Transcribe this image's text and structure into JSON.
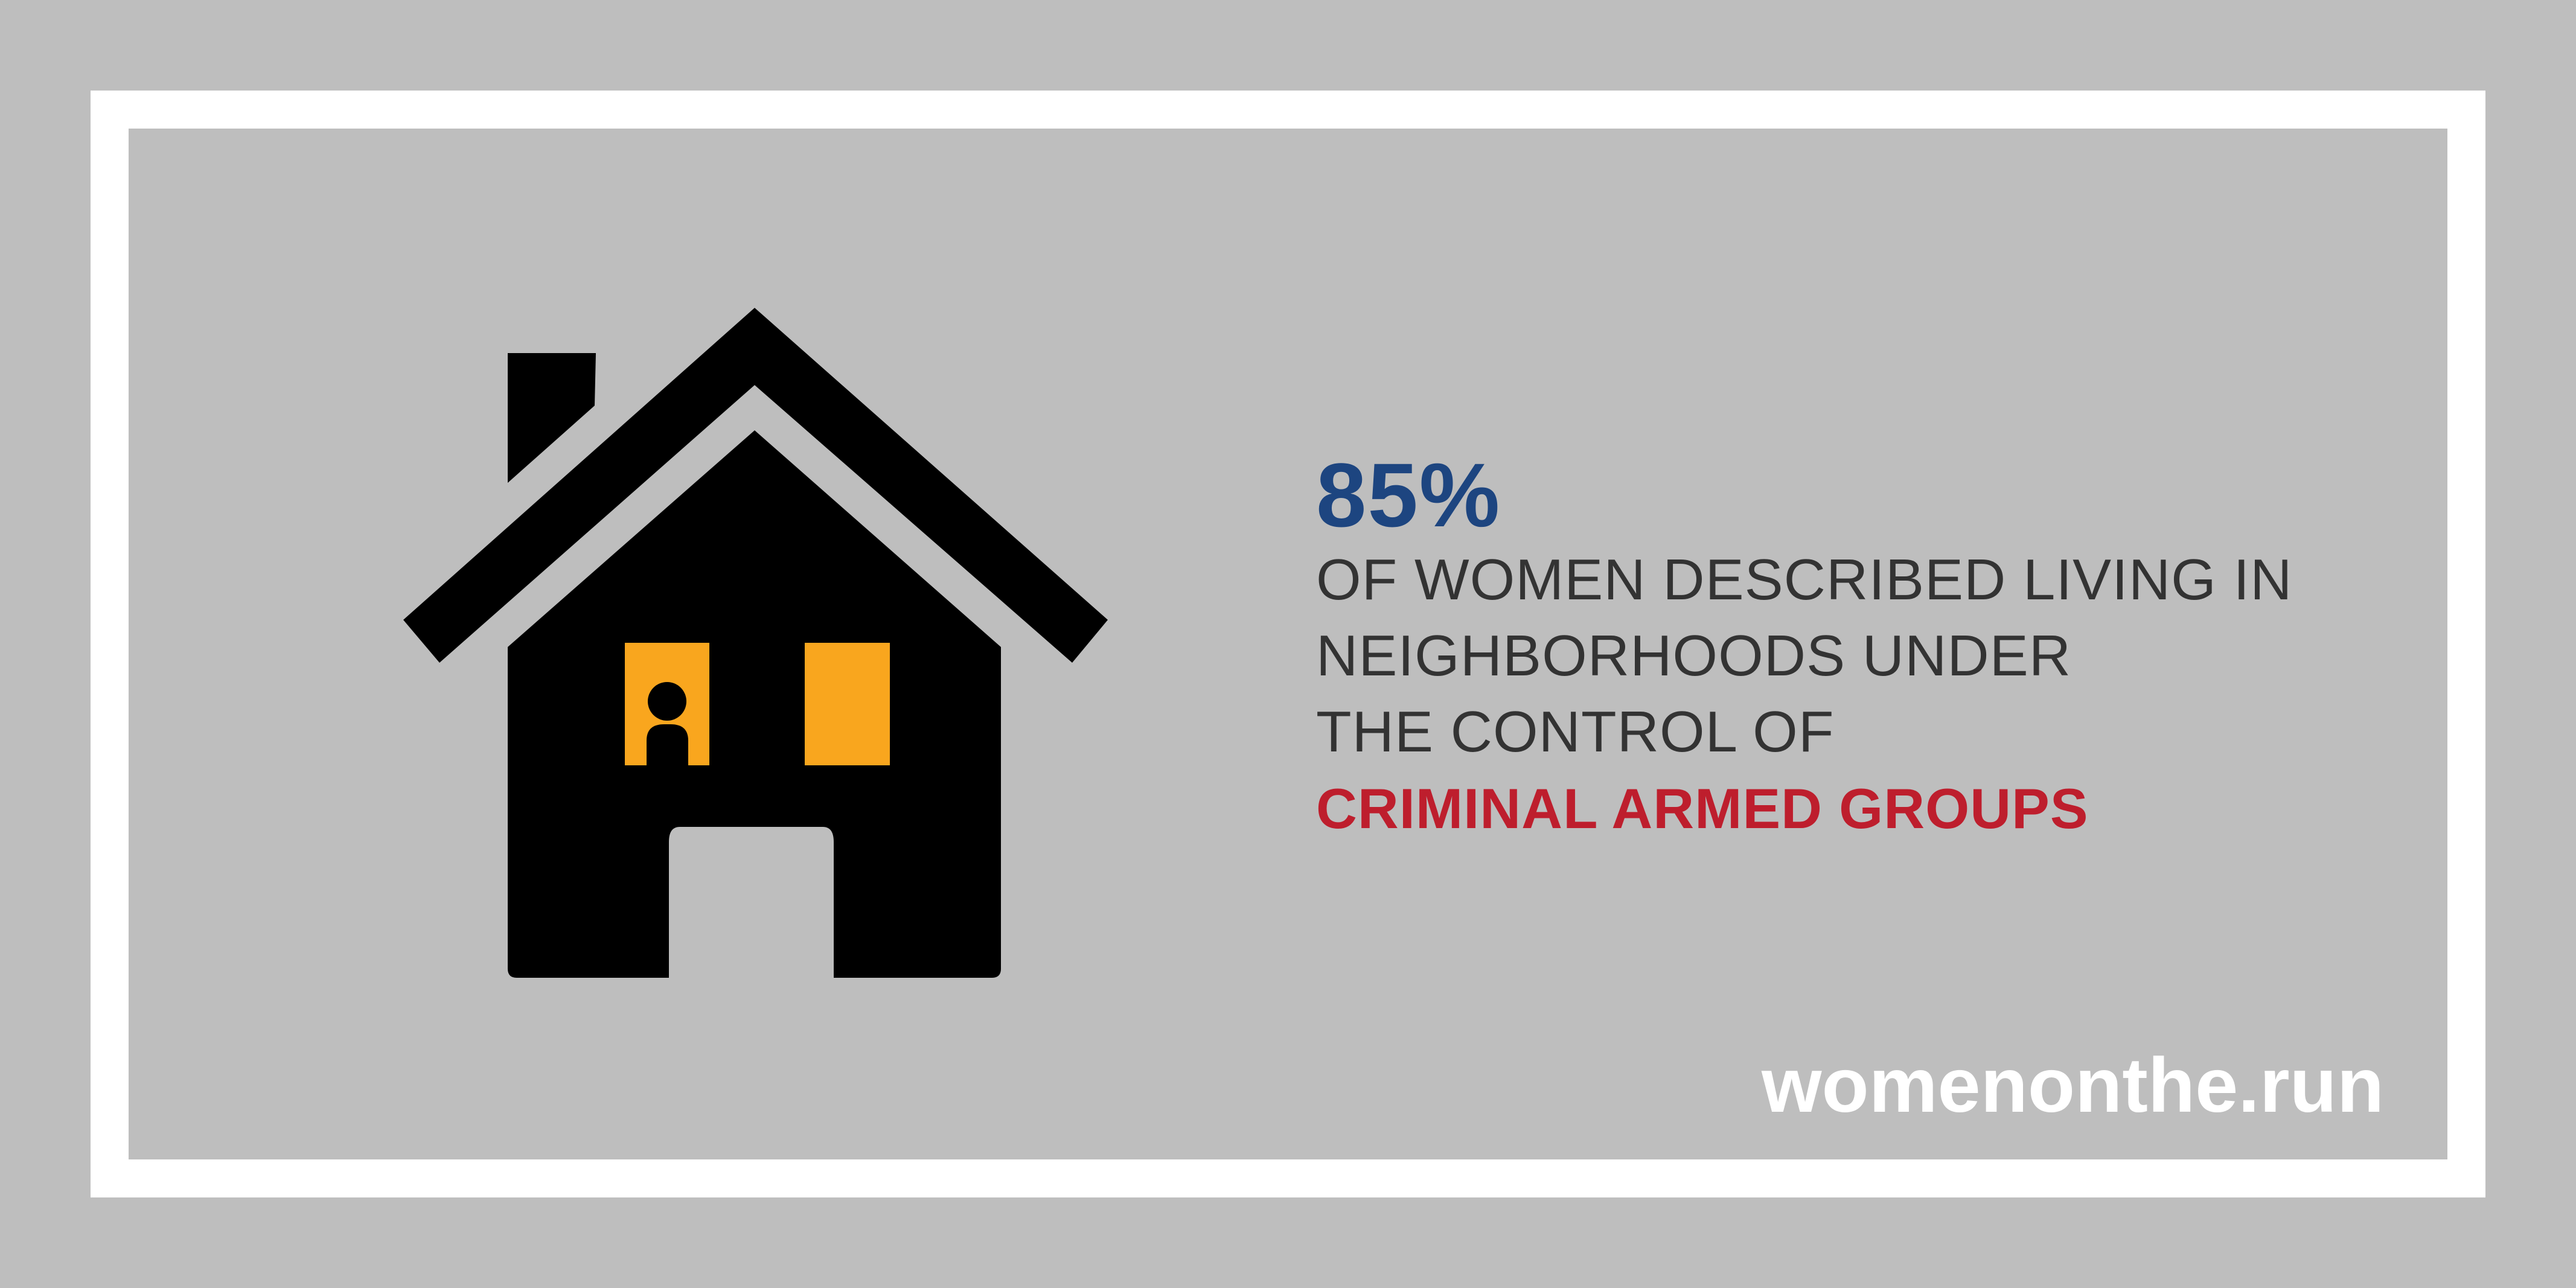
{
  "stat": {
    "percent": "85%",
    "line1": "OF WOMEN DESCRIBED LIVING IN",
    "line2": "NEIGHBORHOODS UNDER",
    "line3": "THE CONTROL OF",
    "highlight": "CRIMINAL ARMED GROUPS"
  },
  "footer": {
    "url": "womenonthe.run"
  },
  "colors": {
    "background": "#bebebe",
    "frame": "#ffffff",
    "percent": "#1d4580",
    "body_text": "#333333",
    "highlight": "#be1e2d",
    "house": "#000000",
    "window_light": "#f9a61e"
  },
  "icons": {
    "house": "house-icon",
    "person": "person-icon"
  }
}
